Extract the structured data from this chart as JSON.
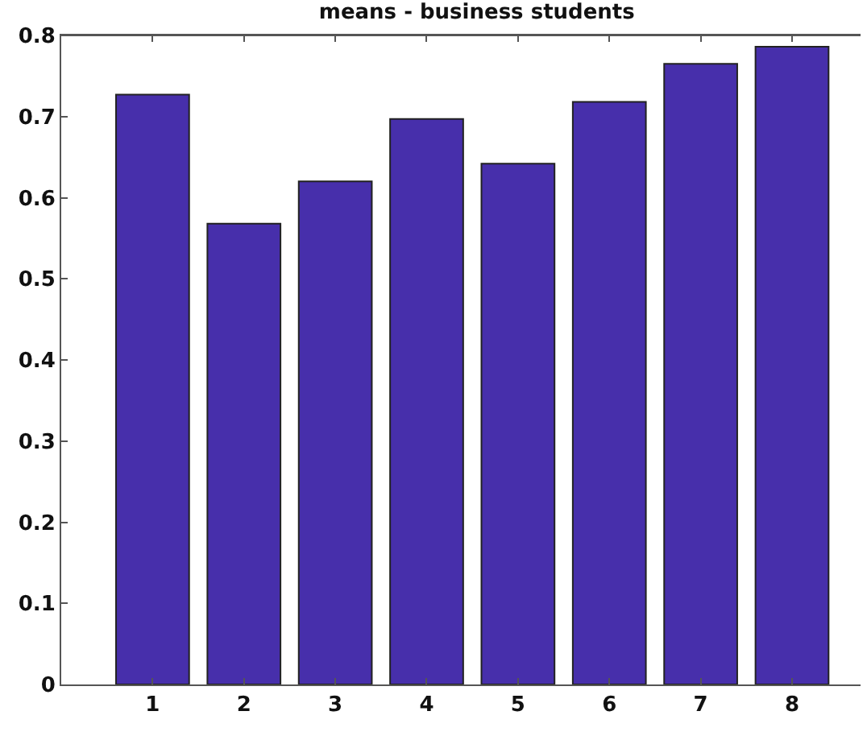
{
  "chart_data": {
    "type": "bar",
    "title": "means - business students",
    "categories": [
      "1",
      "2",
      "3",
      "4",
      "5",
      "6",
      "7",
      "8"
    ],
    "values": [
      0.727,
      0.568,
      0.62,
      0.697,
      0.642,
      0.718,
      0.765,
      0.786
    ],
    "color": "#472fab",
    "ylim": [
      0,
      0.8
    ],
    "yticks": [
      0,
      0.1,
      0.2,
      0.3,
      0.4,
      0.5,
      0.6,
      0.7,
      0.8
    ]
  }
}
